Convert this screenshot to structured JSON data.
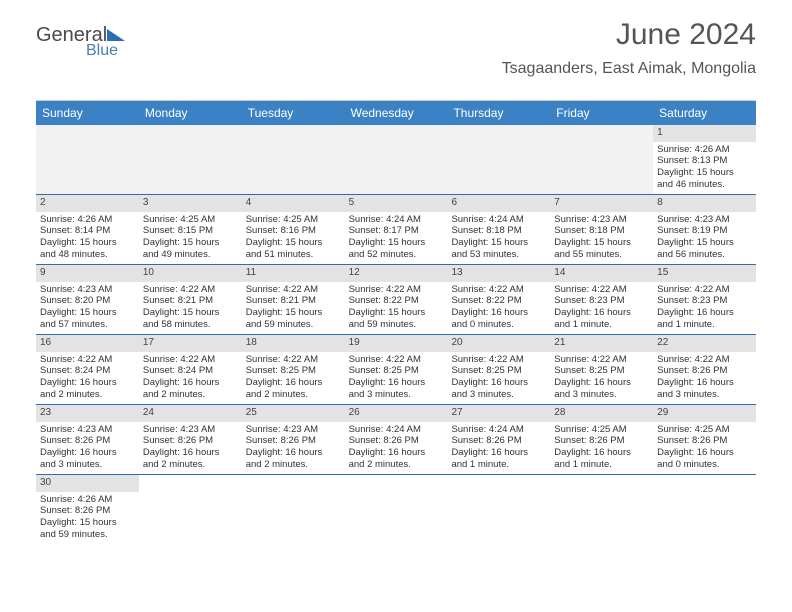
{
  "logo": {
    "text1": "General",
    "text2": "Blue"
  },
  "header": {
    "title": "June 2024",
    "location": "Tsagaanders, East Aimak, Mongolia"
  },
  "colors": {
    "headerBg": "#3b82c4",
    "headerText": "#ffffff",
    "dayNumBg": "#e3e3e3",
    "borderColor": "#2d6db3",
    "emptyBg": "#f2f2f2"
  },
  "dayHeaders": [
    "Sunday",
    "Monday",
    "Tuesday",
    "Wednesday",
    "Thursday",
    "Friday",
    "Saturday"
  ],
  "weeks": [
    [
      {
        "empty": true
      },
      {
        "empty": true
      },
      {
        "empty": true
      },
      {
        "empty": true
      },
      {
        "empty": true
      },
      {
        "empty": true
      },
      {
        "num": "1",
        "sunrise": "Sunrise: 4:26 AM",
        "sunset": "Sunset: 8:13 PM",
        "daylight1": "Daylight: 15 hours",
        "daylight2": "and 46 minutes."
      }
    ],
    [
      {
        "num": "2",
        "sunrise": "Sunrise: 4:26 AM",
        "sunset": "Sunset: 8:14 PM",
        "daylight1": "Daylight: 15 hours",
        "daylight2": "and 48 minutes."
      },
      {
        "num": "3",
        "sunrise": "Sunrise: 4:25 AM",
        "sunset": "Sunset: 8:15 PM",
        "daylight1": "Daylight: 15 hours",
        "daylight2": "and 49 minutes."
      },
      {
        "num": "4",
        "sunrise": "Sunrise: 4:25 AM",
        "sunset": "Sunset: 8:16 PM",
        "daylight1": "Daylight: 15 hours",
        "daylight2": "and 51 minutes."
      },
      {
        "num": "5",
        "sunrise": "Sunrise: 4:24 AM",
        "sunset": "Sunset: 8:17 PM",
        "daylight1": "Daylight: 15 hours",
        "daylight2": "and 52 minutes."
      },
      {
        "num": "6",
        "sunrise": "Sunrise: 4:24 AM",
        "sunset": "Sunset: 8:18 PM",
        "daylight1": "Daylight: 15 hours",
        "daylight2": "and 53 minutes."
      },
      {
        "num": "7",
        "sunrise": "Sunrise: 4:23 AM",
        "sunset": "Sunset: 8:18 PM",
        "daylight1": "Daylight: 15 hours",
        "daylight2": "and 55 minutes."
      },
      {
        "num": "8",
        "sunrise": "Sunrise: 4:23 AM",
        "sunset": "Sunset: 8:19 PM",
        "daylight1": "Daylight: 15 hours",
        "daylight2": "and 56 minutes."
      }
    ],
    [
      {
        "num": "9",
        "sunrise": "Sunrise: 4:23 AM",
        "sunset": "Sunset: 8:20 PM",
        "daylight1": "Daylight: 15 hours",
        "daylight2": "and 57 minutes."
      },
      {
        "num": "10",
        "sunrise": "Sunrise: 4:22 AM",
        "sunset": "Sunset: 8:21 PM",
        "daylight1": "Daylight: 15 hours",
        "daylight2": "and 58 minutes."
      },
      {
        "num": "11",
        "sunrise": "Sunrise: 4:22 AM",
        "sunset": "Sunset: 8:21 PM",
        "daylight1": "Daylight: 15 hours",
        "daylight2": "and 59 minutes."
      },
      {
        "num": "12",
        "sunrise": "Sunrise: 4:22 AM",
        "sunset": "Sunset: 8:22 PM",
        "daylight1": "Daylight: 15 hours",
        "daylight2": "and 59 minutes."
      },
      {
        "num": "13",
        "sunrise": "Sunrise: 4:22 AM",
        "sunset": "Sunset: 8:22 PM",
        "daylight1": "Daylight: 16 hours",
        "daylight2": "and 0 minutes."
      },
      {
        "num": "14",
        "sunrise": "Sunrise: 4:22 AM",
        "sunset": "Sunset: 8:23 PM",
        "daylight1": "Daylight: 16 hours",
        "daylight2": "and 1 minute."
      },
      {
        "num": "15",
        "sunrise": "Sunrise: 4:22 AM",
        "sunset": "Sunset: 8:23 PM",
        "daylight1": "Daylight: 16 hours",
        "daylight2": "and 1 minute."
      }
    ],
    [
      {
        "num": "16",
        "sunrise": "Sunrise: 4:22 AM",
        "sunset": "Sunset: 8:24 PM",
        "daylight1": "Daylight: 16 hours",
        "daylight2": "and 2 minutes."
      },
      {
        "num": "17",
        "sunrise": "Sunrise: 4:22 AM",
        "sunset": "Sunset: 8:24 PM",
        "daylight1": "Daylight: 16 hours",
        "daylight2": "and 2 minutes."
      },
      {
        "num": "18",
        "sunrise": "Sunrise: 4:22 AM",
        "sunset": "Sunset: 8:25 PM",
        "daylight1": "Daylight: 16 hours",
        "daylight2": "and 2 minutes."
      },
      {
        "num": "19",
        "sunrise": "Sunrise: 4:22 AM",
        "sunset": "Sunset: 8:25 PM",
        "daylight1": "Daylight: 16 hours",
        "daylight2": "and 3 minutes."
      },
      {
        "num": "20",
        "sunrise": "Sunrise: 4:22 AM",
        "sunset": "Sunset: 8:25 PM",
        "daylight1": "Daylight: 16 hours",
        "daylight2": "and 3 minutes."
      },
      {
        "num": "21",
        "sunrise": "Sunrise: 4:22 AM",
        "sunset": "Sunset: 8:25 PM",
        "daylight1": "Daylight: 16 hours",
        "daylight2": "and 3 minutes."
      },
      {
        "num": "22",
        "sunrise": "Sunrise: 4:22 AM",
        "sunset": "Sunset: 8:26 PM",
        "daylight1": "Daylight: 16 hours",
        "daylight2": "and 3 minutes."
      }
    ],
    [
      {
        "num": "23",
        "sunrise": "Sunrise: 4:23 AM",
        "sunset": "Sunset: 8:26 PM",
        "daylight1": "Daylight: 16 hours",
        "daylight2": "and 3 minutes."
      },
      {
        "num": "24",
        "sunrise": "Sunrise: 4:23 AM",
        "sunset": "Sunset: 8:26 PM",
        "daylight1": "Daylight: 16 hours",
        "daylight2": "and 2 minutes."
      },
      {
        "num": "25",
        "sunrise": "Sunrise: 4:23 AM",
        "sunset": "Sunset: 8:26 PM",
        "daylight1": "Daylight: 16 hours",
        "daylight2": "and 2 minutes."
      },
      {
        "num": "26",
        "sunrise": "Sunrise: 4:24 AM",
        "sunset": "Sunset: 8:26 PM",
        "daylight1": "Daylight: 16 hours",
        "daylight2": "and 2 minutes."
      },
      {
        "num": "27",
        "sunrise": "Sunrise: 4:24 AM",
        "sunset": "Sunset: 8:26 PM",
        "daylight1": "Daylight: 16 hours",
        "daylight2": "and 1 minute."
      },
      {
        "num": "28",
        "sunrise": "Sunrise: 4:25 AM",
        "sunset": "Sunset: 8:26 PM",
        "daylight1": "Daylight: 16 hours",
        "daylight2": "and 1 minute."
      },
      {
        "num": "29",
        "sunrise": "Sunrise: 4:25 AM",
        "sunset": "Sunset: 8:26 PM",
        "daylight1": "Daylight: 16 hours",
        "daylight2": "and 0 minutes."
      }
    ],
    [
      {
        "num": "30",
        "sunrise": "Sunrise: 4:26 AM",
        "sunset": "Sunset: 8:26 PM",
        "daylight1": "Daylight: 15 hours",
        "daylight2": "and 59 minutes."
      },
      {
        "empty": true
      },
      {
        "empty": true
      },
      {
        "empty": true
      },
      {
        "empty": true
      },
      {
        "empty": true
      },
      {
        "empty": true
      }
    ]
  ]
}
